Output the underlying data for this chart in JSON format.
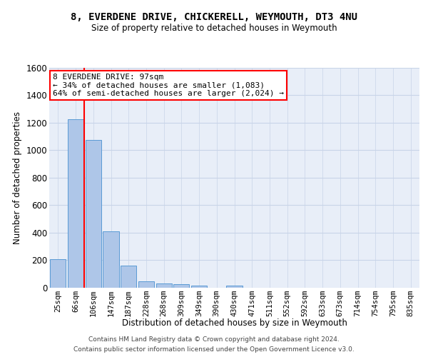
{
  "title": "8, EVERDENE DRIVE, CHICKERELL, WEYMOUTH, DT3 4NU",
  "subtitle": "Size of property relative to detached houses in Weymouth",
  "xlabel": "Distribution of detached houses by size in Weymouth",
  "ylabel": "Number of detached properties",
  "bar_labels": [
    "25sqm",
    "66sqm",
    "106sqm",
    "147sqm",
    "187sqm",
    "228sqm",
    "268sqm",
    "309sqm",
    "349sqm",
    "390sqm",
    "430sqm",
    "471sqm",
    "511sqm",
    "552sqm",
    "592sqm",
    "633sqm",
    "673sqm",
    "714sqm",
    "754sqm",
    "795sqm",
    "835sqm"
  ],
  "bar_values": [
    205,
    1225,
    1075,
    410,
    160,
    45,
    27,
    22,
    15,
    0,
    15,
    0,
    0,
    0,
    0,
    0,
    0,
    0,
    0,
    0,
    0
  ],
  "bar_color": "#aec6e8",
  "bar_edge_color": "#5a9bd5",
  "vline_x_idx": 1,
  "vline_color": "red",
  "annotation_text": "8 EVERDENE DRIVE: 97sqm\n← 34% of detached houses are smaller (1,083)\n64% of semi-detached houses are larger (2,024) →",
  "annotation_box_color": "white",
  "annotation_box_edge_color": "red",
  "ylim": [
    0,
    1600
  ],
  "yticks": [
    0,
    200,
    400,
    600,
    800,
    1000,
    1200,
    1400,
    1600
  ],
  "grid_color": "#c8d4e8",
  "bg_color": "#e8eef8",
  "footer1": "Contains HM Land Registry data © Crown copyright and database right 2024.",
  "footer2": "Contains public sector information licensed under the Open Government Licence v3.0."
}
